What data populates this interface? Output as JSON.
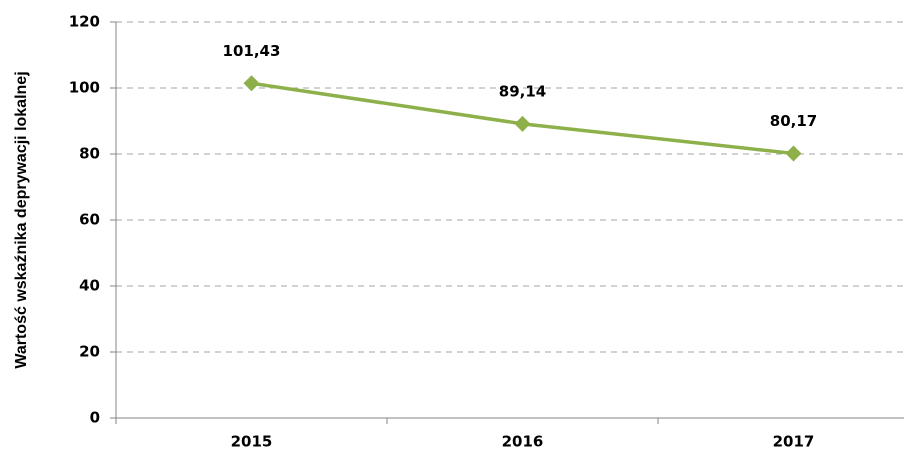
{
  "chart_data": {
    "type": "line",
    "y_axis_label": "Wartość wskaźnika deprywacji lokalnej",
    "categories": [
      "2015",
      "2016",
      "2017"
    ],
    "values": [
      101.43,
      89.14,
      80.17
    ],
    "value_labels": [
      "101,43",
      "89,14",
      "80,17"
    ],
    "color": "#8db04a",
    "ylim": [
      0,
      120
    ],
    "yticks": [
      0,
      20,
      40,
      60,
      80,
      100,
      120
    ],
    "grid": true
  }
}
